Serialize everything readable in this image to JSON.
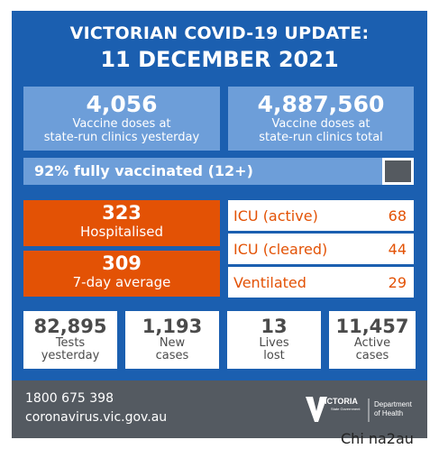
{
  "header": {
    "title_line1": "VICTORIAN COVID-19 UPDATE:",
    "title_line2": "11 DECEMBER 2021"
  },
  "vaccine": [
    {
      "value": "4,056",
      "label_line1": "Vaccine doses at",
      "label_line2": "state-run clinics yesterday"
    },
    {
      "value": "4,887,560",
      "label_line1": "Vaccine doses at",
      "label_line2": "state-run clinics total"
    }
  ],
  "fully_vaccinated": {
    "label": "92% fully vaccinated (12+)",
    "percent": 92
  },
  "hospital": [
    {
      "value": "323",
      "label": "Hospitalised"
    },
    {
      "value": "309",
      "label": "7-day average"
    }
  ],
  "icu": [
    {
      "label": "ICU (active)",
      "value": "68"
    },
    {
      "label": "ICU (cleared)",
      "value": "44"
    },
    {
      "label": "Ventilated",
      "value": "29"
    }
  ],
  "stats": [
    {
      "value": "82,895",
      "line1": "Tests",
      "line2": "yesterday"
    },
    {
      "value": "1,193",
      "line1": "New",
      "line2": "cases"
    },
    {
      "value": "13",
      "line1": "Lives",
      "line2": "lost"
    },
    {
      "value": "11,457",
      "line1": "Active",
      "line2": "cases"
    }
  ],
  "footer": {
    "phone": "1800 675 398",
    "website": "coronavirus.vic.gov.au",
    "logo_state": "VICTORIA",
    "logo_small": "State Government",
    "logo_dept_line1": "Department",
    "logo_dept_line2": "of Health"
  },
  "watermark": "Chi na2au",
  "colors": {
    "background": "#1b5fb0",
    "light_blue": "#6d9ed9",
    "orange": "#e35205",
    "footer": "#545a61",
    "bar_remainder": "#555a60"
  }
}
